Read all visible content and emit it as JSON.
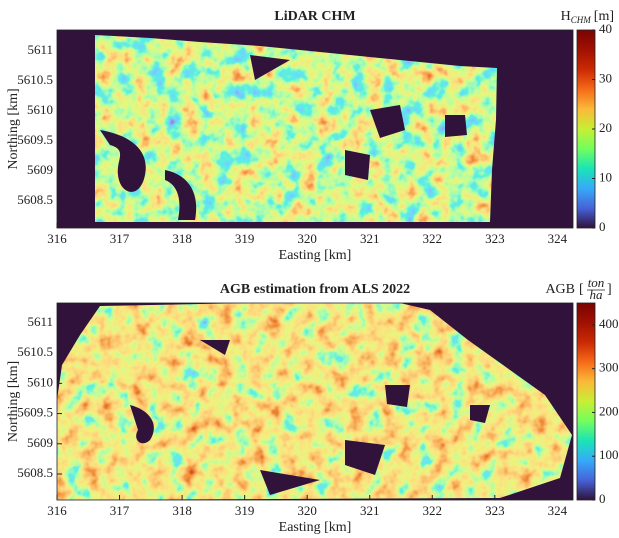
{
  "chart_data": [
    {
      "type": "image",
      "title": "LiDAR CHM",
      "xlabel": "Easting [km]",
      "ylabel": "Northing [km]",
      "xlim": [
        316,
        324.25
      ],
      "xticks": [
        316,
        317,
        318,
        319,
        320,
        321,
        322,
        323,
        324
      ],
      "ylim": [
        5608.05,
        5611.35
      ],
      "yticks": [
        5608.5,
        5609,
        5609.5,
        5610,
        5610.5,
        5611
      ],
      "clim": [
        0,
        40
      ],
      "cticks": [
        0,
        10,
        20,
        30,
        40
      ],
      "colorbar_label": {
        "text": "H",
        "sub": "CHM",
        "unit": "[m]"
      }
    },
    {
      "type": "image",
      "title": "AGB estimation from ALS 2022",
      "xlabel": "Easting [km]",
      "ylabel": "Northing [km]",
      "xlim": [
        316,
        324.25
      ],
      "xticks": [
        316,
        317,
        318,
        319,
        320,
        321,
        322,
        323,
        324
      ],
      "ylim": [
        5608.07,
        5611.33
      ],
      "yticks": [
        5608.5,
        5609,
        5609.5,
        5610,
        5610.5,
        5611
      ],
      "clim": [
        0,
        450
      ],
      "cticks": [
        0,
        100,
        200,
        300,
        400
      ],
      "colorbar_label": {
        "text": "AGB",
        "open": "[",
        "num": "ton",
        "den": "ha",
        "close": "]"
      }
    }
  ]
}
